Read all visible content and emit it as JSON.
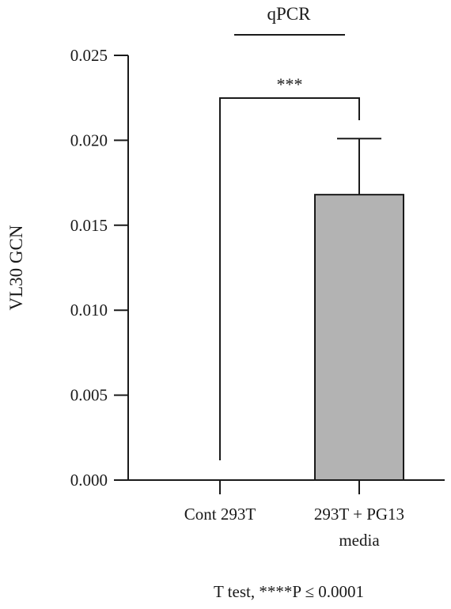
{
  "chart_data": {
    "type": "bar",
    "title": "qPCR",
    "ylabel": "VL30 GCN",
    "xlabel": "",
    "categories": [
      "Cont 293T",
      "293T + PG13 media"
    ],
    "category_lines": [
      [
        "Cont 293T"
      ],
      [
        "293T + PG13",
        "media"
      ]
    ],
    "values": [
      0.0,
      0.0168
    ],
    "error_upper": [
      0.0,
      0.0201
    ],
    "ylim": [
      0,
      0.025
    ],
    "yticks": [
      "0.000",
      "0.005",
      "0.010",
      "0.015",
      "0.020",
      "0.025"
    ],
    "ytick_values": [
      0,
      0.005,
      0.01,
      0.015,
      0.02,
      0.025
    ],
    "significance": {
      "label": "***",
      "between": [
        0,
        1
      ]
    },
    "bar_color": "#b3b3b3",
    "grid": false,
    "legend": "none"
  },
  "footnote": "T test, ****P ≤ 0.0001"
}
